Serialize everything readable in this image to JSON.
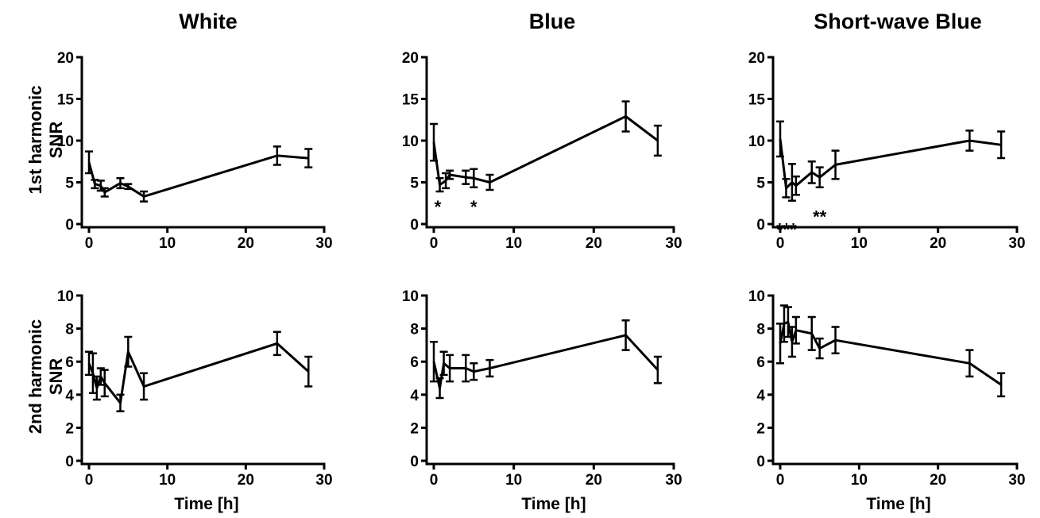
{
  "column_titles": [
    "White",
    "Blue",
    "Short-wave Blue"
  ],
  "row_labels": [
    [
      "1st harmonic",
      "SNR"
    ],
    [
      "2nd harmonic",
      "SNR"
    ]
  ],
  "x_axis_label": "Time [h]",
  "chart_data": [
    {
      "type": "line",
      "title": "White",
      "row_label": "1st harmonic SNR",
      "xlabel": "",
      "ylabel": "1st harmonic SNR",
      "xlim": [
        0,
        30
      ],
      "ylim": [
        0,
        20
      ],
      "xticks": [
        0,
        10,
        20,
        30
      ],
      "yticks": [
        0,
        5,
        10,
        15,
        20
      ],
      "grid": false,
      "x": [
        0,
        0.75,
        1.5,
        2,
        4,
        5,
        7,
        24,
        28
      ],
      "y": [
        7.4,
        4.8,
        4.6,
        3.8,
        4.9,
        4.5,
        3.3,
        8.2,
        7.9
      ],
      "err": [
        1.3,
        0.5,
        0.6,
        0.5,
        0.6,
        0.3,
        0.6,
        1.1,
        1.1
      ],
      "annotations": []
    },
    {
      "type": "line",
      "title": "Blue",
      "row_label": "1st harmonic SNR",
      "xlabel": "",
      "ylabel": "1st harmonic SNR",
      "xlim": [
        0,
        30
      ],
      "ylim": [
        0,
        20
      ],
      "xticks": [
        0,
        10,
        20,
        30
      ],
      "yticks": [
        0,
        5,
        10,
        15,
        20
      ],
      "grid": false,
      "x": [
        0,
        0.75,
        1.5,
        2,
        4,
        5,
        7,
        24,
        28
      ],
      "y": [
        9.8,
        4.7,
        5.2,
        5.9,
        5.6,
        5.5,
        5.0,
        12.9,
        10.0
      ],
      "err": [
        2.2,
        0.8,
        0.9,
        0.5,
        0.8,
        1.1,
        0.9,
        1.8,
        1.8
      ],
      "annotations": [
        {
          "x": 0.5,
          "y": 2.1,
          "text": "*"
        },
        {
          "x": 5,
          "y": 2.1,
          "text": "*"
        }
      ]
    },
    {
      "type": "line",
      "title": "Short-wave Blue",
      "row_label": "1st harmonic SNR",
      "xlabel": "",
      "ylabel": "1st harmonic SNR",
      "xlim": [
        0,
        30
      ],
      "ylim": [
        0,
        20
      ],
      "xticks": [
        0,
        10,
        20,
        30
      ],
      "yticks": [
        0,
        5,
        10,
        15,
        20
      ],
      "grid": false,
      "x": [
        0,
        0.75,
        1.5,
        2,
        4,
        5,
        7,
        24,
        28
      ],
      "y": [
        10.2,
        4.3,
        5.0,
        4.6,
        6.2,
        5.6,
        7.1,
        10.0,
        9.5
      ],
      "err": [
        2.1,
        1.1,
        2.2,
        1.1,
        1.3,
        1.2,
        1.7,
        1.2,
        1.6
      ],
      "annotations": [
        {
          "x": 0.8,
          "y": -0.6,
          "text": "***"
        },
        {
          "x": 5,
          "y": 0.9,
          "text": "**"
        }
      ]
    },
    {
      "type": "line",
      "title": "White",
      "row_label": "2nd harmonic SNR",
      "xlabel": "Time [h]",
      "ylabel": "2nd harmonic SNR",
      "xlim": [
        0,
        30
      ],
      "ylim": [
        0,
        10
      ],
      "xticks": [
        0,
        10,
        20,
        30
      ],
      "yticks": [
        0,
        2,
        4,
        6,
        8,
        10
      ],
      "grid": false,
      "x": [
        0,
        0.5,
        1,
        1.5,
        2,
        4,
        5,
        7,
        24,
        28
      ],
      "y": [
        5.9,
        5.3,
        4.4,
        5.1,
        4.7,
        3.5,
        6.6,
        4.5,
        7.1,
        5.4
      ],
      "err": [
        0.7,
        1.2,
        0.7,
        0.5,
        0.8,
        0.5,
        0.9,
        0.8,
        0.7,
        0.9
      ],
      "annotations": []
    },
    {
      "type": "line",
      "title": "Blue",
      "row_label": "2nd harmonic SNR",
      "xlabel": "Time [h]",
      "ylabel": "2nd harmonic SNR",
      "xlim": [
        0,
        30
      ],
      "ylim": [
        0,
        10
      ],
      "xticks": [
        0,
        10,
        20,
        30
      ],
      "yticks": [
        0,
        2,
        4,
        6,
        8,
        10
      ],
      "grid": false,
      "x": [
        0,
        0.75,
        1.25,
        2,
        4,
        5,
        7,
        24,
        28
      ],
      "y": [
        6.0,
        4.4,
        5.9,
        5.6,
        5.6,
        5.4,
        5.6,
        7.6,
        5.5
      ],
      "err": [
        1.2,
        0.6,
        0.7,
        0.8,
        0.8,
        0.5,
        0.5,
        0.9,
        0.8
      ],
      "annotations": []
    },
    {
      "type": "line",
      "title": "Short-wave Blue",
      "row_label": "2nd harmonic SNR",
      "xlabel": "Time [h]",
      "ylabel": "2nd harmonic SNR",
      "xlim": [
        0,
        30
      ],
      "ylim": [
        0,
        10
      ],
      "xticks": [
        0,
        10,
        20,
        30
      ],
      "yticks": [
        0,
        2,
        4,
        6,
        8,
        10
      ],
      "grid": false,
      "x": [
        0,
        0.5,
        1,
        1.5,
        2,
        4,
        5,
        7,
        24,
        28
      ],
      "y": [
        7.1,
        8.3,
        8.4,
        7.2,
        7.9,
        7.7,
        6.8,
        7.3,
        5.9,
        4.6
      ],
      "err": [
        1.2,
        1.1,
        0.9,
        0.9,
        0.8,
        1.0,
        0.6,
        0.8,
        0.8,
        0.7
      ],
      "annotations": []
    }
  ]
}
